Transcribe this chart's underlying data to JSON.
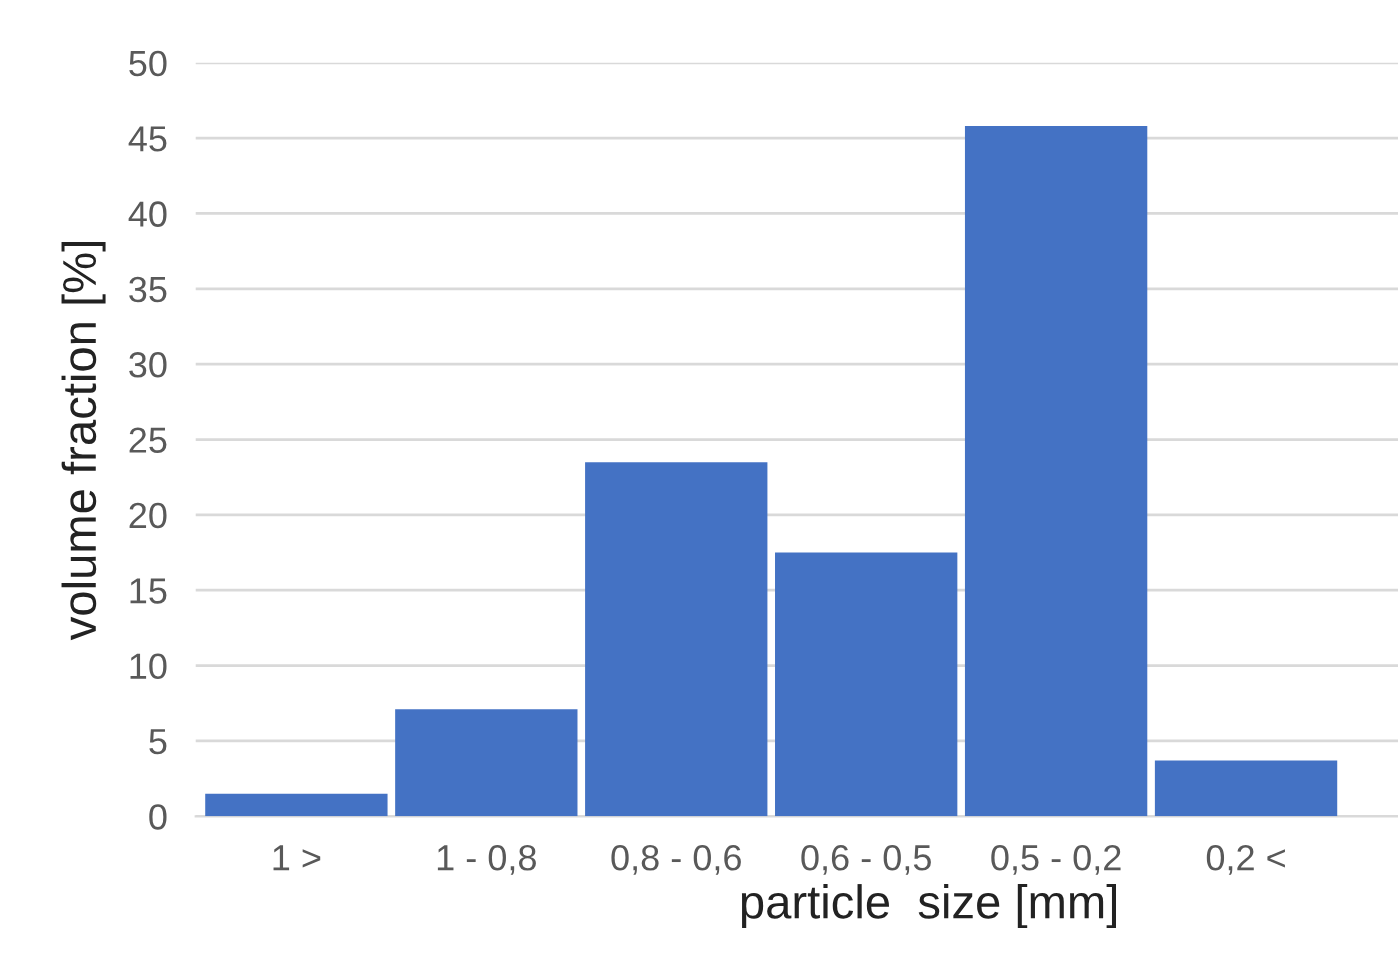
{
  "chart_data": {
    "type": "bar",
    "xlabel": "particle  size [mm]",
    "ylabel": "volume fraction [%]",
    "categories": [
      "1 >",
      "1 - 0,8",
      "0,8 - 0,6",
      "0,6 - 0,5",
      "0,5 - 0,2",
      "0,2 <"
    ],
    "values": [
      1.5,
      7.1,
      23.5,
      17.5,
      45.8,
      3.7
    ],
    "color": "#4472c4",
    "ylim": [
      0,
      50
    ],
    "yticks": [
      0,
      5,
      10,
      15,
      20,
      25,
      30,
      35,
      40,
      45,
      50
    ],
    "grid": "y"
  }
}
